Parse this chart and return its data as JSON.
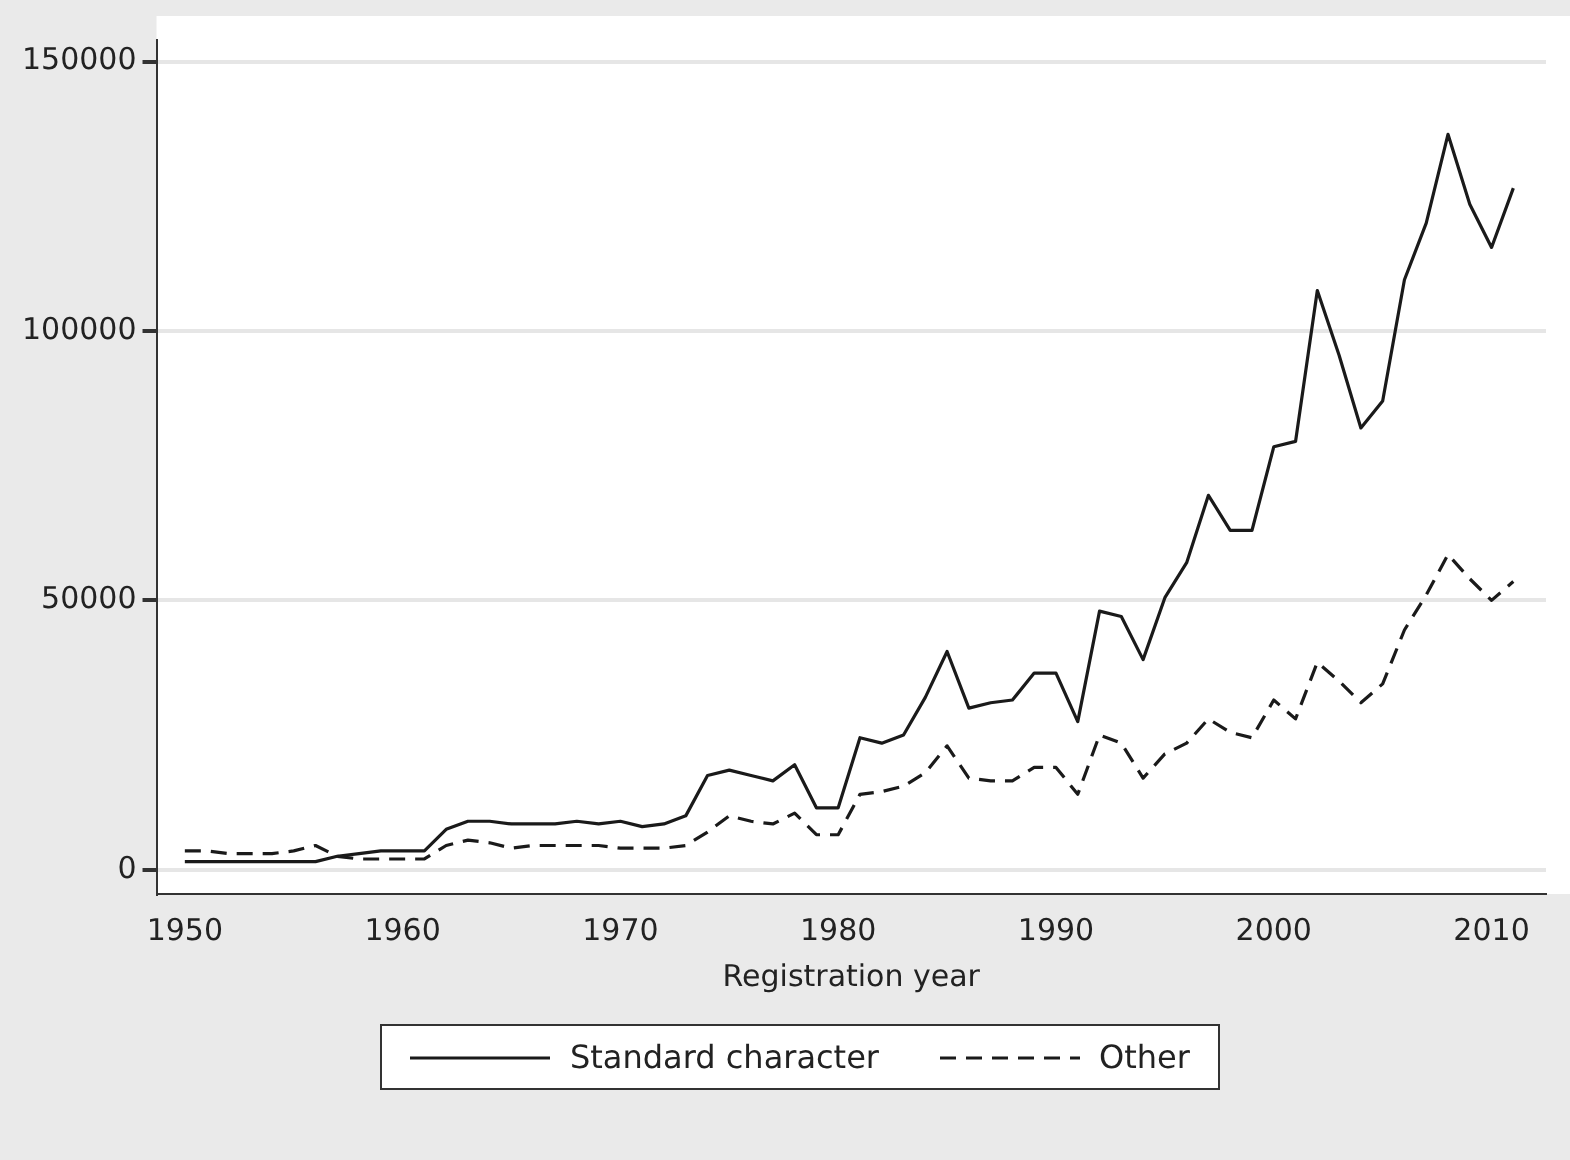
{
  "chart_data": {
    "type": "line",
    "xlabel": "Registration year",
    "x": [
      1950,
      1951,
      1952,
      1953,
      1954,
      1955,
      1956,
      1957,
      1958,
      1959,
      1960,
      1961,
      1962,
      1963,
      1964,
      1965,
      1966,
      1967,
      1968,
      1969,
      1970,
      1971,
      1972,
      1973,
      1974,
      1975,
      1976,
      1977,
      1978,
      1979,
      1980,
      1981,
      1982,
      1983,
      1984,
      1985,
      1986,
      1987,
      1988,
      1989,
      1990,
      1991,
      1992,
      1993,
      1994,
      1995,
      1996,
      1997,
      1998,
      1999,
      2000,
      2001,
      2002,
      2003,
      2004,
      2005,
      2006,
      2007,
      2008,
      2009,
      2010,
      2011
    ],
    "series": [
      {
        "name": "Standard character",
        "color": "#1a1a1a",
        "line_style": "solid",
        "values": [
          1500,
          1500,
          1500,
          1500,
          1500,
          1500,
          1500,
          2500,
          3000,
          3500,
          3500,
          3500,
          7500,
          9000,
          9000,
          8500,
          8500,
          8500,
          9000,
          8500,
          9000,
          8000,
          8500,
          10000,
          17500,
          18500,
          17500,
          16500,
          19500,
          11500,
          11500,
          24500,
          23500,
          25000,
          32000,
          40500,
          30000,
          31000,
          31500,
          36500,
          36500,
          27500,
          48000,
          47000,
          39000,
          50500,
          57000,
          69500,
          63000,
          63000,
          78500,
          79500,
          107500,
          95500,
          82000,
          87000,
          109500,
          120000,
          136500,
          123500,
          115500,
          126500
        ]
      },
      {
        "name": "Other",
        "color": "#1a1a1a",
        "line_style": "dashed",
        "values": [
          3500,
          3500,
          3000,
          3000,
          3000,
          3500,
          4500,
          2500,
          2000,
          2000,
          2000,
          2000,
          4500,
          5500,
          5000,
          4000,
          4500,
          4500,
          4500,
          4500,
          4000,
          4000,
          4000,
          4500,
          7000,
          10000,
          9000,
          8500,
          10500,
          6500,
          6500,
          14000,
          14500,
          15500,
          18000,
          23000,
          17000,
          16500,
          16500,
          19000,
          19000,
          14000,
          25000,
          23500,
          17000,
          21500,
          23500,
          28000,
          25500,
          24500,
          31500,
          28000,
          38500,
          35000,
          31000,
          34500,
          44500,
          51000,
          58500,
          54000,
          50000,
          53500
        ]
      }
    ],
    "xlim": [
      1948.7,
      2012.5
    ],
    "xticks": [
      1950,
      1960,
      1970,
      1980,
      1990,
      2000,
      2010
    ],
    "ylim": [
      -4500,
      154000
    ],
    "yticks": [
      0,
      50000,
      100000,
      150000
    ],
    "grid": "y",
    "legend": "bottom",
    "marker": "none"
  }
}
